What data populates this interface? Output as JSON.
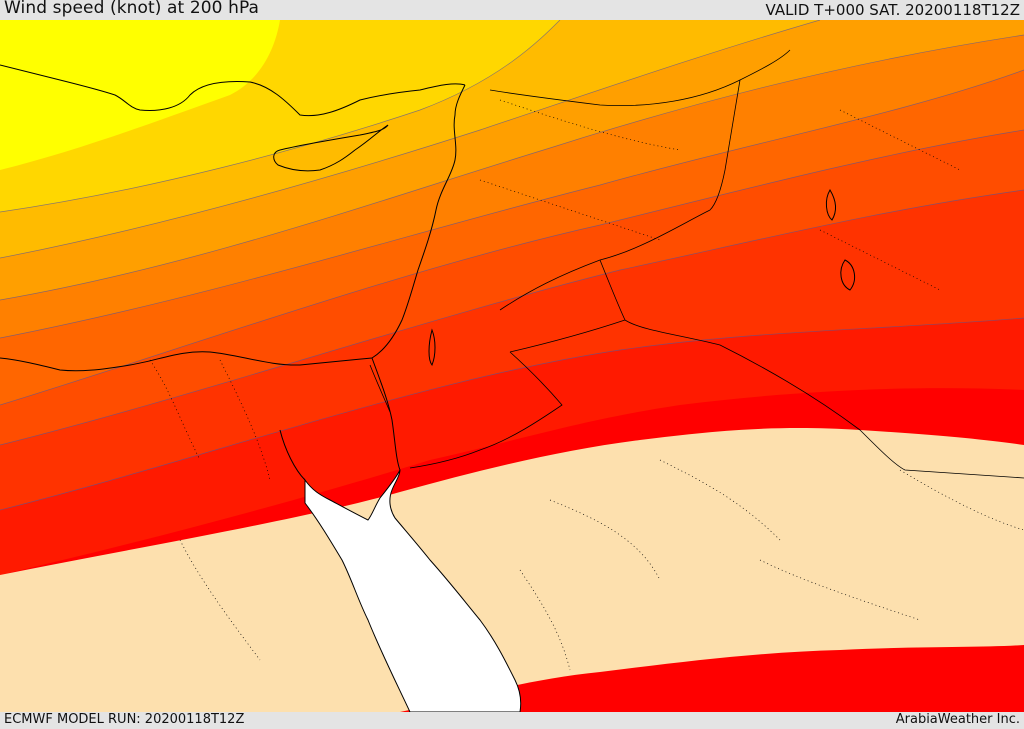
{
  "header": {
    "title": "Wind speed (knot) at 200 hPa",
    "valid": "VALID T+000 SAT. 20200118T12Z"
  },
  "footer": {
    "model_run": "ECMWF MODEL RUN: 20200118T12Z",
    "credit": "ArabiaWeather Inc."
  },
  "colors": {
    "band_1": "#ffff00",
    "band_2": "#ffd700",
    "band_3": "#ffbb00",
    "band_4": "#ff9f00",
    "band_5": "#ff8000",
    "band_6": "#ff6600",
    "band_7": "#ff4d00",
    "band_8": "#ff3300",
    "band_9": "#ff1a00",
    "band_10": "#ff0000",
    "low_wind": "#fde0ae",
    "sea_white": "#ffffff"
  }
}
